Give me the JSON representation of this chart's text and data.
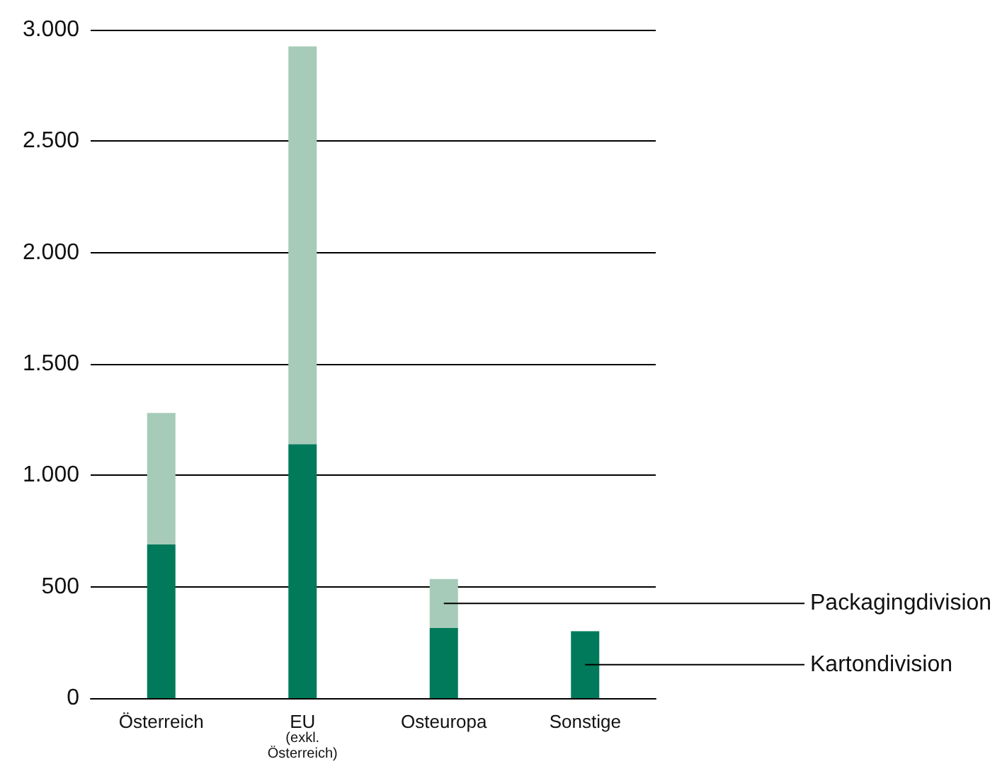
{
  "chart_data": {
    "type": "bar",
    "stacked": true,
    "categories": [
      "Österreich",
      "EU\n(exkl.\nÖsterreich)",
      "Osteuropa",
      "Sonstige"
    ],
    "series": [
      {
        "name": "Kartondivision",
        "color": "#007a5a",
        "values": [
          690,
          1140,
          315,
          300
        ]
      },
      {
        "name": "Packagingdivision",
        "color": "#a6cbb9",
        "values": [
          590,
          1785,
          220,
          0
        ]
      }
    ],
    "ylim": [
      0,
      3000
    ],
    "yticks": [
      {
        "value": 0,
        "label": "0"
      },
      {
        "value": 500,
        "label": "500"
      },
      {
        "value": 1000,
        "label": "1.000"
      },
      {
        "value": 1500,
        "label": "1.500"
      },
      {
        "value": 2000,
        "label": "2.000"
      },
      {
        "value": 2500,
        "label": "2.500"
      },
      {
        "value": 3000,
        "label": "3.000"
      }
    ],
    "grid": "y",
    "legend": "right"
  }
}
